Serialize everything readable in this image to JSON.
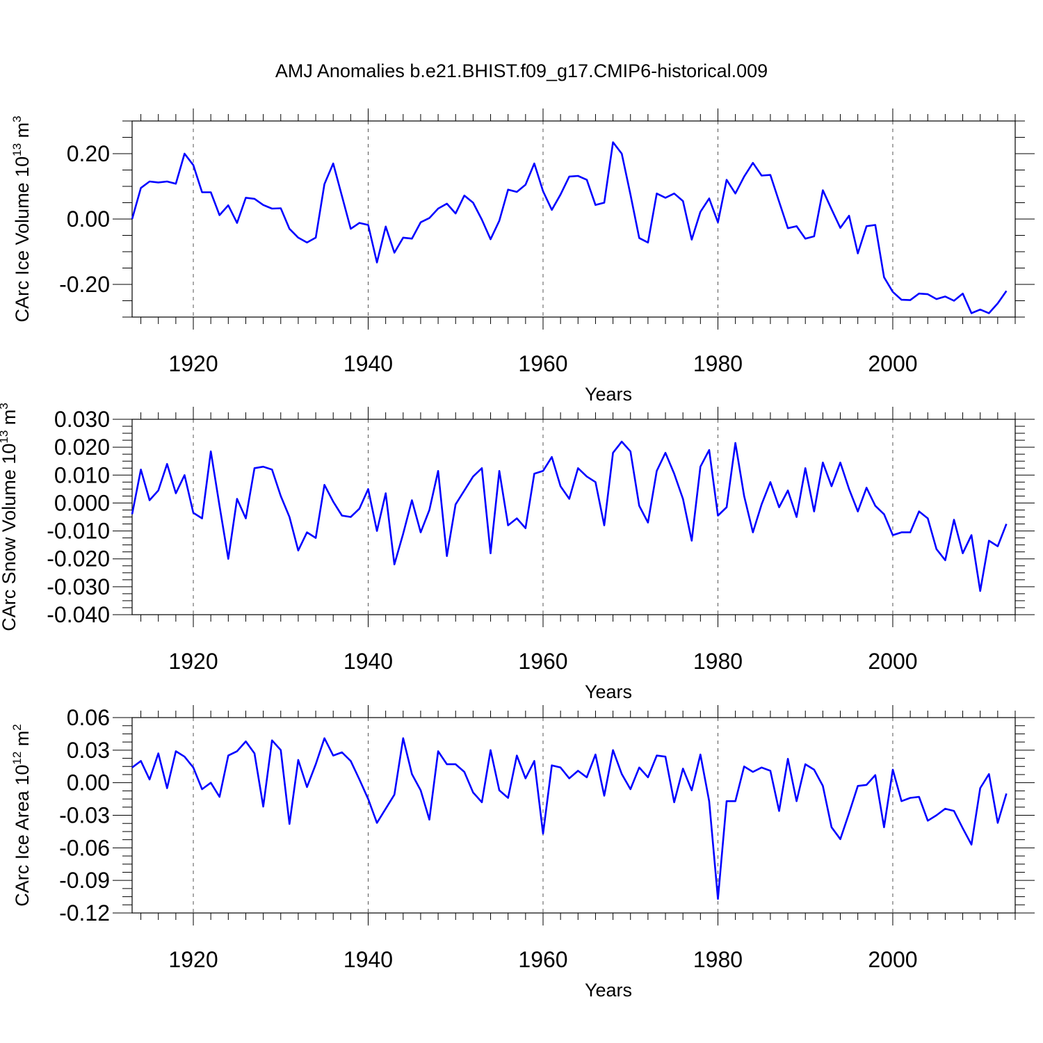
{
  "chart_data": [
    {
      "type": "line",
      "title": "AMJ Anomalies b.e21.BHIST.f09_g17.CMIP6-historical.009",
      "xlabel": "Years",
      "ylabel": "CArc Ice Volume 10",
      "ylabel_exp": "13",
      "ylabel_unit": " m",
      "ylabel_unit_exp": "3",
      "xlim": [
        1913,
        2014
      ],
      "ylim": [
        -0.3,
        0.3
      ],
      "x_ticks": [
        1920,
        1940,
        1960,
        1980,
        2000
      ],
      "x_tick_labels": [
        "1920",
        "1940",
        "1960",
        "1980",
        "2000"
      ],
      "y_ticks": [
        -0.2,
        0.0,
        0.2
      ],
      "y_tick_labels": [
        "-0.20",
        "0.00",
        "0.20"
      ],
      "series_color": "#0000ff",
      "x_start": 1913,
      "values": [
        0.0,
        0.095,
        0.115,
        0.112,
        0.115,
        0.108,
        0.2,
        0.165,
        0.082,
        0.082,
        0.012,
        0.042,
        -0.012,
        0.065,
        0.062,
        0.043,
        0.032,
        0.033,
        -0.03,
        -0.057,
        -0.072,
        -0.057,
        0.107,
        0.17,
        0.07,
        -0.03,
        -0.012,
        -0.018,
        -0.133,
        -0.023,
        -0.103,
        -0.057,
        -0.06,
        -0.01,
        0.003,
        0.032,
        0.047,
        0.017,
        0.072,
        0.05,
        -0.002,
        -0.062,
        -0.005,
        0.09,
        0.083,
        0.105,
        0.17,
        0.085,
        0.028,
        0.075,
        0.13,
        0.132,
        0.12,
        0.043,
        0.05,
        0.235,
        0.2,
        0.075,
        -0.058,
        -0.072,
        0.078,
        0.065,
        0.078,
        0.055,
        -0.063,
        0.022,
        0.063,
        -0.01,
        0.12,
        0.078,
        0.13,
        0.172,
        0.133,
        0.135,
        0.053,
        -0.028,
        -0.022,
        -0.06,
        -0.053,
        0.088,
        0.03,
        -0.027,
        0.01,
        -0.105,
        -0.022,
        -0.018,
        -0.178,
        -0.223,
        -0.247,
        -0.248,
        -0.228,
        -0.23,
        -0.245,
        -0.237,
        -0.25,
        -0.228,
        -0.288,
        -0.277,
        -0.288,
        -0.258,
        -0.22
      ]
    },
    {
      "type": "line",
      "xlabel": "Years",
      "ylabel": "CArc Snow Volume 10",
      "ylabel_exp": "13",
      "ylabel_unit": " m",
      "ylabel_unit_exp": "3",
      "xlim": [
        1913,
        2014
      ],
      "ylim": [
        -0.04,
        0.03
      ],
      "x_ticks": [
        1920,
        1940,
        1960,
        1980,
        2000
      ],
      "x_tick_labels": [
        "1920",
        "1940",
        "1960",
        "1980",
        "2000"
      ],
      "y_ticks": [
        -0.04,
        -0.03,
        -0.02,
        -0.01,
        0.0,
        0.01,
        0.02,
        0.03
      ],
      "y_tick_labels": [
        "-0.040",
        "-0.030",
        "-0.020",
        "-0.010",
        "0.000",
        "0.010",
        "0.020",
        "0.030"
      ],
      "series_color": "#0000ff",
      "x_start": 1913,
      "values": [
        -0.004,
        0.012,
        0.001,
        0.0045,
        0.014,
        0.0035,
        0.01,
        -0.0035,
        -0.0055,
        0.0185,
        -0.001,
        -0.02,
        0.0015,
        -0.0055,
        0.0125,
        0.013,
        0.012,
        0.0025,
        -0.005,
        -0.017,
        -0.0105,
        -0.0125,
        0.0065,
        0.0005,
        -0.0045,
        -0.005,
        -0.002,
        0.005,
        -0.01,
        0.0035,
        -0.022,
        -0.011,
        0.001,
        -0.0105,
        -0.0025,
        0.0115,
        -0.019,
        -0.0005,
        0.0045,
        0.0095,
        0.0125,
        -0.018,
        0.0115,
        -0.008,
        -0.0055,
        -0.009,
        0.0105,
        0.0115,
        0.0165,
        0.006,
        0.0015,
        0.0125,
        0.0095,
        0.0075,
        -0.008,
        0.018,
        0.022,
        0.0185,
        -0.001,
        -0.007,
        0.0115,
        0.018,
        0.0105,
        0.0015,
        -0.0135,
        0.013,
        0.019,
        -0.0045,
        -0.0015,
        0.0215,
        0.0025,
        -0.0105,
        -0.0005,
        0.0075,
        -0.0015,
        0.0045,
        -0.005,
        0.0125,
        -0.003,
        0.0145,
        0.006,
        0.0145,
        0.005,
        -0.003,
        0.0055,
        -0.001,
        -0.004,
        -0.0115,
        -0.0105,
        -0.0105,
        -0.003,
        -0.0055,
        -0.0165,
        -0.0205,
        -0.006,
        -0.018,
        -0.0115,
        -0.0315,
        -0.0135,
        -0.0155,
        -0.0075
      ]
    },
    {
      "type": "line",
      "xlabel": "Years",
      "ylabel": "CArc Ice Area 10",
      "ylabel_exp": "12",
      "ylabel_unit": " m",
      "ylabel_unit_exp": "2",
      "xlim": [
        1913,
        2014
      ],
      "ylim": [
        -0.12,
        0.06
      ],
      "x_ticks": [
        1920,
        1940,
        1960,
        1980,
        2000
      ],
      "x_tick_labels": [
        "1920",
        "1940",
        "1960",
        "1980",
        "2000"
      ],
      "y_ticks": [
        -0.12,
        -0.09,
        -0.06,
        -0.03,
        0.0,
        0.03,
        0.06
      ],
      "y_tick_labels": [
        "-0.12",
        "-0.09",
        "-0.06",
        "-0.03",
        "0.00",
        "0.03",
        "0.06"
      ],
      "series_color": "#0000ff",
      "x_start": 1913,
      "values": [
        0.014,
        0.02,
        0.003,
        0.027,
        -0.005,
        0.029,
        0.024,
        0.014,
        -0.006,
        0.0,
        -0.013,
        0.025,
        0.029,
        0.038,
        0.027,
        -0.022,
        0.039,
        0.03,
        -0.038,
        0.021,
        -0.004,
        0.017,
        0.041,
        0.025,
        0.028,
        0.02,
        0.003,
        -0.015,
        -0.037,
        -0.024,
        -0.011,
        0.041,
        0.008,
        -0.007,
        -0.034,
        0.029,
        0.017,
        0.017,
        0.01,
        -0.009,
        -0.018,
        0.03,
        -0.007,
        -0.014,
        0.025,
        0.004,
        0.02,
        -0.047,
        0.016,
        0.014,
        0.004,
        0.011,
        0.005,
        0.026,
        -0.012,
        0.03,
        0.008,
        -0.006,
        0.014,
        0.005,
        0.025,
        0.024,
        -0.018,
        0.013,
        -0.007,
        0.026,
        -0.017,
        -0.107,
        -0.017,
        -0.017,
        0.015,
        0.01,
        0.014,
        0.011,
        -0.026,
        0.022,
        -0.017,
        0.017,
        0.012,
        -0.003,
        -0.041,
        -0.052,
        -0.028,
        -0.003,
        -0.002,
        0.007,
        -0.041,
        0.012,
        -0.017,
        -0.014,
        -0.013,
        -0.035,
        -0.03,
        -0.024,
        -0.026,
        -0.042,
        -0.057,
        -0.005,
        0.008,
        -0.037,
        -0.01
      ]
    }
  ]
}
